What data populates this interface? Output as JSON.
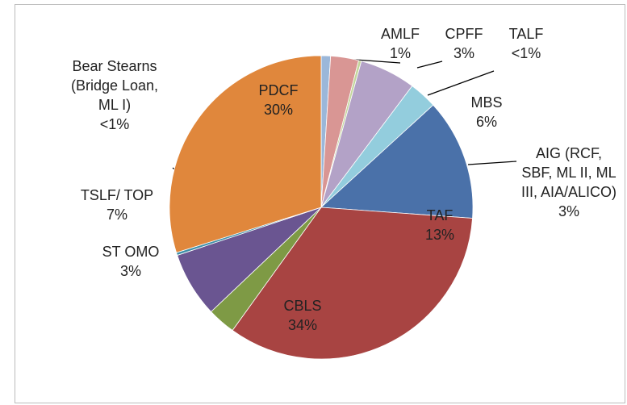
{
  "chart_data": {
    "type": "pie",
    "categories": [
      "AMLF",
      "CPFF",
      "TALF",
      "MBS",
      "AIG (RCF, SBF, ML II, ML III, AIA/ALICO)",
      "TAF",
      "CBLS",
      "ST OMO",
      "TSLF/ TOP",
      "Bear Stearns (Bridge Loan, ML I)",
      "PDCF"
    ],
    "values": [
      1,
      3,
      0.3,
      6,
      3,
      13,
      34,
      3,
      7,
      0.3,
      30
    ],
    "value_labels": [
      "1%",
      "3%",
      "<1%",
      "6%",
      "3%",
      "13%",
      "34%",
      "3%",
      "7%",
      "<1%",
      "30%"
    ],
    "colors": [
      "#9bb7d9",
      "#d99694",
      "#c3d69b",
      "#b3a2c7",
      "#93cddd",
      "#4a71a9",
      "#a84442",
      "#7e9a45",
      "#6a5591",
      "#3f8fa8",
      "#e0873c"
    ]
  }
}
